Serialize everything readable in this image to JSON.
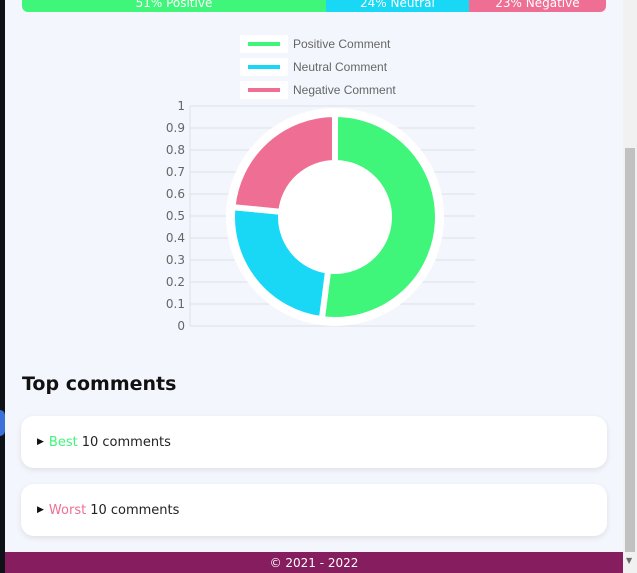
{
  "summary": {
    "positive": {
      "label": "51% Positive",
      "percent": 51,
      "color": "#3ff57a"
    },
    "neutral": {
      "label": "24% Neutral",
      "percent": 24,
      "color": "#18d8f6"
    },
    "negative": {
      "label": "23% Negative",
      "percent": 23,
      "color": "#ee6f93"
    }
  },
  "chart_data": {
    "type": "pie",
    "variant": "doughnut",
    "legend": [
      "Positive Comment",
      "Neutral Comment",
      "Negative Comment"
    ],
    "values": [
      51,
      24,
      23
    ],
    "colors": [
      "#3ff57a",
      "#18d8f6",
      "#ee6f93"
    ],
    "y_ticks": [
      "0",
      "0.1",
      "0.2",
      "0.3",
      "0.4",
      "0.5",
      "0.6",
      "0.7",
      "0.8",
      "0.9",
      "1"
    ],
    "ylim": [
      0,
      1
    ],
    "legend_position": "top",
    "grid": true
  },
  "top_comments": {
    "title": "Top comments",
    "best": {
      "keyword": "Best",
      "text": "10 comments"
    },
    "worst": {
      "keyword": "Worst",
      "text": "10 comments"
    }
  },
  "footer": {
    "text": "© 2021 - 2022"
  }
}
